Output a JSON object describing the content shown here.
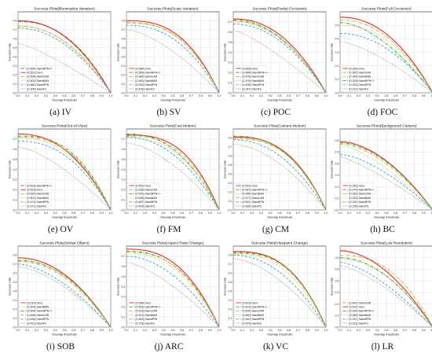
{
  "colors": {
    "Ours": "#e8262b",
    "SiamRPN++": "#2ca02c",
    "SiamCAR": "#b5b52a",
    "SiamBAN": "#d8b43a",
    "SiamRPN": "#35a3d8",
    "SiamFC": "#8c8c8c"
  },
  "styles": {
    "Ours": "solid",
    "SiamRPN++": "dashdot",
    "SiamCAR": "dashdot",
    "SiamBAN": "dotted",
    "SiamRPN": "dashed",
    "SiamFC": "dotted"
  },
  "chart_data": [
    {
      "type": "line",
      "title": "Success Plots(Illumination Variation)",
      "xlabel": "Overlap threshold",
      "ylabel": "Success rate",
      "caption": "(a) IV",
      "xlim": [
        0,
        1
      ],
      "ylim": [
        0,
        0.9
      ],
      "x_ticks": [
        "0.0",
        "0.1",
        "0.2",
        "0.3",
        "0.4",
        "0.5",
        "0.6",
        "0.7",
        "0.8",
        "0.9",
        "1.0"
      ],
      "y_ticks": [
        "0.0",
        "0.1",
        "0.2",
        "0.3",
        "0.4",
        "0.5",
        "0.6",
        "0.7",
        "0.8"
      ],
      "grid": true,
      "legend": "lower-left",
      "series": [
        {
          "name": "SiamRPN++",
          "auc": 0.554,
          "label": "[0.554] SiamRPN++",
          "y0": 0.79
        },
        {
          "name": "Ours",
          "auc": 0.551,
          "label": "[0.551] Ours",
          "y0": 0.8
        },
        {
          "name": "SiamCAR",
          "auc": 0.504,
          "label": "[0.504] SiamCAR",
          "y0": 0.74
        },
        {
          "name": "SiamBAN",
          "auc": 0.502,
          "label": "[0.502] SiamBAN",
          "y0": 0.75
        },
        {
          "name": "SiamRPN",
          "auc": 0.48,
          "label": "[0.480] SiamRPN",
          "y0": 0.72
        },
        {
          "name": "SiamFC",
          "auc": 0.305,
          "label": "[0.305] SiamFC",
          "y0": 0.55
        }
      ]
    },
    {
      "type": "line",
      "title": "Success Plots(Scale Variation)",
      "xlabel": "Overlap threshold",
      "ylabel": "Success rate",
      "caption": "(b) SV",
      "xlim": [
        0,
        1
      ],
      "ylim": [
        0,
        0.9
      ],
      "x_ticks": [
        "0.0",
        "0.1",
        "0.2",
        "0.3",
        "0.4",
        "0.5",
        "0.6",
        "0.7",
        "0.8",
        "0.9",
        "1.0"
      ],
      "y_ticks": [
        "0.0",
        "0.1",
        "0.2",
        "0.3",
        "0.4",
        "0.5",
        "0.6",
        "0.7",
        "0.8"
      ],
      "grid": true,
      "legend": "lower-left",
      "series": [
        {
          "name": "Ours",
          "auc": 0.584,
          "label": "[0.584] Ours",
          "y0": 0.8
        },
        {
          "name": "SiamRPN++",
          "auc": 0.564,
          "label": "[0.564] SiamRPN++",
          "y0": 0.78
        },
        {
          "name": "SiamCAR",
          "auc": 0.564,
          "label": "[0.564] SiamCAR",
          "y0": 0.78
        },
        {
          "name": "SiamBAN",
          "auc": 0.562,
          "label": "[0.562] SiamBAN",
          "y0": 0.77
        },
        {
          "name": "SiamRPN",
          "auc": 0.526,
          "label": "[0.526] SiamRPN",
          "y0": 0.75
        },
        {
          "name": "SiamFC",
          "auc": 0.426,
          "label": "[0.426] SiamFC",
          "y0": 0.7
        }
      ]
    },
    {
      "type": "line",
      "title": "Success Plots(Partial Occlusion)",
      "xlabel": "Overlap threshold",
      "ylabel": "Success rate",
      "caption": "(c) POC",
      "xlim": [
        0,
        1
      ],
      "ylim": [
        0,
        0.8
      ],
      "x_ticks": [
        "0.0",
        "0.1",
        "0.2",
        "0.3",
        "0.4",
        "0.5",
        "0.6",
        "0.7",
        "0.8",
        "0.9",
        "1.0"
      ],
      "y_ticks": [
        "0.0",
        "0.1",
        "0.2",
        "0.3",
        "0.4",
        "0.5",
        "0.6",
        "0.7"
      ],
      "grid": true,
      "legend": "lower-left",
      "series": [
        {
          "name": "Ours",
          "auc": 0.503,
          "label": "[0.503] Ours",
          "y0": 0.73
        },
        {
          "name": "SiamRPN++",
          "auc": 0.485,
          "label": "[0.485] SiamRPN++",
          "y0": 0.72
        },
        {
          "name": "SiamCAR",
          "auc": 0.478,
          "label": "[0.478] SiamCAR",
          "y0": 0.71
        },
        {
          "name": "SiamBAN",
          "auc": 0.476,
          "label": "[0.476] SiamBAN",
          "y0": 0.7
        },
        {
          "name": "SiamRPN",
          "auc": 0.456,
          "label": "[0.456] SiamRPN",
          "y0": 0.68
        },
        {
          "name": "SiamFC",
          "auc": 0.347,
          "label": "[0.347] SiamFC",
          "y0": 0.62
        }
      ]
    },
    {
      "type": "line",
      "title": "Success Plots(Full Occlusion)",
      "xlabel": "Overlap threshold",
      "ylabel": "Success rate",
      "caption": "(d) FOC",
      "xlim": [
        0,
        1
      ],
      "ylim": [
        0,
        0.6
      ],
      "x_ticks": [
        "0.0",
        "0.1",
        "0.2",
        "0.3",
        "0.4",
        "0.5",
        "0.6",
        "0.7",
        "0.8",
        "0.9",
        "1.0"
      ],
      "y_ticks": [
        "0.0",
        "0.1",
        "0.2",
        "0.3",
        "0.4",
        "0.5"
      ],
      "grid": true,
      "legend": "lower-left",
      "series": [
        {
          "name": "Ours",
          "auc": 0.383,
          "label": "[0.383] Ours",
          "y0": 0.56
        },
        {
          "name": "SiamCAR",
          "auc": 0.367,
          "label": "[0.367] SiamCAR",
          "y0": 0.54
        },
        {
          "name": "SiamBAN",
          "auc": 0.344,
          "label": "[0.344] SiamBAN",
          "y0": 0.5
        },
        {
          "name": "SiamRPN++",
          "auc": 0.329,
          "label": "[0.329] SiamRPN++",
          "y0": 0.52
        },
        {
          "name": "SiamRPN",
          "auc": 0.292,
          "label": "[0.292] SiamRPN",
          "y0": 0.44
        },
        {
          "name": "SiamFC",
          "auc": 0.222,
          "label": "[0.222] SiamFC",
          "y0": 0.38
        }
      ]
    },
    {
      "type": "line",
      "title": "Success Plots(Out-of-View)",
      "xlabel": "Overlap threshold",
      "ylabel": "Success rate",
      "caption": "(e) OV",
      "xlim": [
        0,
        1
      ],
      "ylim": [
        0,
        0.8
      ],
      "x_ticks": [
        "0.0",
        "0.1",
        "0.2",
        "0.3",
        "0.4",
        "0.5",
        "0.6",
        "0.7",
        "0.8",
        "0.9",
        "1.0"
      ],
      "y_ticks": [
        "0.0",
        "0.1",
        "0.2",
        "0.3",
        "0.4",
        "0.5",
        "0.6",
        "0.7"
      ],
      "grid": true,
      "legend": "lower-left",
      "series": [
        {
          "name": "SiamRPN++",
          "auc": 0.533,
          "label": "[0.533] SiamRPN++",
          "y0": 0.73
        },
        {
          "name": "Ours",
          "auc": 0.523,
          "label": "[0.523] Ours",
          "y0": 0.75
        },
        {
          "name": "SiamCAR",
          "auc": 0.52,
          "label": "[0.520] SiamCAR",
          "y0": 0.72
        },
        {
          "name": "SiamBAN",
          "auc": 0.502,
          "label": "[0.502] SiamBAN",
          "y0": 0.71
        },
        {
          "name": "SiamRPN",
          "auc": 0.474,
          "label": "[0.474] SiamRPN",
          "y0": 0.68
        },
        {
          "name": "SiamFC",
          "auc": 0.371,
          "label": "[0.371] SiamFC",
          "y0": 0.62
        }
      ]
    },
    {
      "type": "line",
      "title": "Success Plots(Fast Motion)",
      "xlabel": "Overlap threshold",
      "ylabel": "Success rate",
      "caption": "(f) FM",
      "xlim": [
        0,
        1
      ],
      "ylim": [
        0,
        0.8
      ],
      "x_ticks": [
        "0.0",
        "0.1",
        "0.2",
        "0.3",
        "0.4",
        "0.5",
        "0.6",
        "0.7",
        "0.8",
        "0.9",
        "1.0"
      ],
      "y_ticks": [
        "0.0",
        "0.1",
        "0.2",
        "0.3",
        "0.4",
        "0.5",
        "0.6",
        "0.7"
      ],
      "grid": true,
      "legend": "lower-left",
      "series": [
        {
          "name": "Ours",
          "auc": 0.552,
          "label": "[0.552] Ours",
          "y0": 0.74
        },
        {
          "name": "SiamCAR",
          "auc": 0.536,
          "label": "[0.536] SiamCAR",
          "y0": 0.73
        },
        {
          "name": "SiamRPN++",
          "auc": 0.526,
          "label": "[0.526] SiamRPN++",
          "y0": 0.75
        },
        {
          "name": "SiamBAN",
          "auc": 0.508,
          "label": "[0.508] SiamBAN",
          "y0": 0.71
        },
        {
          "name": "SiamRPN",
          "auc": 0.487,
          "label": "[0.487] SiamRPN",
          "y0": 0.72
        },
        {
          "name": "SiamFC",
          "auc": 0.409,
          "label": "[0.409] SiamFC",
          "y0": 0.66
        }
      ]
    },
    {
      "type": "line",
      "title": "Success Plots(Camera Motion)",
      "xlabel": "Overlap threshold",
      "ylabel": "Success rate",
      "caption": "(g) CM",
      "xlim": [
        0,
        1
      ],
      "ylim": [
        0,
        0.9
      ],
      "x_ticks": [
        "0.0",
        "0.1",
        "0.2",
        "0.3",
        "0.4",
        "0.5",
        "0.6",
        "0.7",
        "0.8",
        "0.9",
        "1.0"
      ],
      "y_ticks": [
        "0.0",
        "0.1",
        "0.2",
        "0.3",
        "0.4",
        "0.5",
        "0.6",
        "0.7",
        "0.8"
      ],
      "grid": true,
      "legend": "lower-left",
      "series": [
        {
          "name": "Ours",
          "auc": 0.591,
          "label": "[0.591] Ours",
          "y0": 0.81
        },
        {
          "name": "SiamRPN++",
          "auc": 0.587,
          "label": "[0.587] SiamRPN++",
          "y0": 0.82
        },
        {
          "name": "SiamBAN",
          "auc": 0.58,
          "label": "[0.580] SiamBAN",
          "y0": 0.8
        },
        {
          "name": "SiamCAR",
          "auc": 0.577,
          "label": "[0.577] SiamCAR",
          "y0": 0.79
        },
        {
          "name": "SiamRPN",
          "auc": 0.531,
          "label": "[0.531] SiamRPN",
          "y0": 0.78
        },
        {
          "name": "SiamFC",
          "auc": 0.465,
          "label": "[0.465] SiamFC",
          "y0": 0.73
        }
      ]
    },
    {
      "type": "line",
      "title": "Success Plots(Background Clutters)",
      "xlabel": "Overlap threshold",
      "ylabel": "Success rate",
      "caption": "(h) BC",
      "xlim": [
        0,
        1
      ],
      "ylim": [
        0,
        0.7
      ],
      "x_ticks": [
        "0.0",
        "0.1",
        "0.2",
        "0.3",
        "0.4",
        "0.5",
        "0.6",
        "0.7",
        "0.8",
        "0.9",
        "1.0"
      ],
      "y_ticks": [
        "0.0",
        "0.1",
        "0.2",
        "0.3",
        "0.4",
        "0.5",
        "0.6"
      ],
      "grid": true,
      "legend": "lower-left",
      "series": [
        {
          "name": "Ours",
          "auc": 0.381,
          "label": "[0.381] Ours",
          "y0": 0.59
        },
        {
          "name": "SiamRPN++",
          "auc": 0.374,
          "label": "[0.374] SiamRPN++",
          "y0": 0.58
        },
        {
          "name": "SiamCAR",
          "auc": 0.362,
          "label": "[0.362] SiamCAR",
          "y0": 0.57
        },
        {
          "name": "SiamBAN",
          "auc": 0.332,
          "label": "[0.332] SiamBAN",
          "y0": 0.56
        },
        {
          "name": "SiamRPN",
          "auc": 0.292,
          "label": "[0.292] SiamRPN",
          "y0": 0.48
        },
        {
          "name": "SiamFC",
          "auc": 0.255,
          "label": "[0.255] SiamFC",
          "y0": 0.46
        }
      ]
    },
    {
      "type": "line",
      "title": "Success Plots(Similar Object)",
      "xlabel": "Overlap threshold",
      "ylabel": "Success rate",
      "caption": "(i) SOB",
      "xlim": [
        0,
        1
      ],
      "ylim": [
        0,
        0.9
      ],
      "x_ticks": [
        "0.0",
        "0.1",
        "0.2",
        "0.3",
        "0.4",
        "0.5",
        "0.6",
        "0.7",
        "0.8",
        "0.9",
        "1.0"
      ],
      "y_ticks": [
        "0.0",
        "0.1",
        "0.2",
        "0.3",
        "0.4",
        "0.5",
        "0.6",
        "0.7",
        "0.8"
      ],
      "grid": true,
      "legend": "lower-left",
      "series": [
        {
          "name": "Ours",
          "auc": 0.519,
          "label": "[0.519] Ours",
          "y0": 0.77
        },
        {
          "name": "SiamBAN",
          "auc": 0.504,
          "label": "[0.504] SiamBAN",
          "y0": 0.75
        },
        {
          "name": "SiamRPN++",
          "auc": 0.504,
          "label": "[0.504] SiamRPN++",
          "y0": 0.74
        },
        {
          "name": "SiamCAR",
          "auc": 0.489,
          "label": "[0.489] SiamCAR",
          "y0": 0.73
        },
        {
          "name": "SiamRPN",
          "auc": 0.436,
          "label": "[0.436] SiamRPN",
          "y0": 0.7
        },
        {
          "name": "SiamFC",
          "auc": 0.41,
          "label": "[0.410] SiamFC",
          "y0": 0.67
        }
      ]
    },
    {
      "type": "line",
      "title": "Success Plots(Aspect Ratio Change)",
      "xlabel": "Overlap threshold",
      "ylabel": "Success rate",
      "caption": "(j) ARC",
      "xlim": [
        0,
        1
      ],
      "ylim": [
        0,
        0.8
      ],
      "x_ticks": [
        "0.0",
        "0.1",
        "0.2",
        "0.3",
        "0.4",
        "0.5",
        "0.6",
        "0.7",
        "0.8",
        "0.9",
        "1.0"
      ],
      "y_ticks": [
        "0.0",
        "0.1",
        "0.2",
        "0.3",
        "0.4",
        "0.5",
        "0.6",
        "0.7"
      ],
      "grid": true,
      "legend": "lower-left",
      "series": [
        {
          "name": "Ours",
          "auc": 0.554,
          "label": "[0.554] Ours",
          "y0": 0.77
        },
        {
          "name": "SiamRPN++",
          "auc": 0.533,
          "label": "[0.533] SiamRPN++",
          "y0": 0.75
        },
        {
          "name": "SiamCAR",
          "auc": 0.533,
          "label": "[0.533] SiamCAR",
          "y0": 0.74
        },
        {
          "name": "SiamBAN",
          "auc": 0.513,
          "label": "[0.513] SiamBAN",
          "y0": 0.73
        },
        {
          "name": "SiamRPN",
          "auc": 0.459,
          "label": "[0.459] SiamRPN",
          "y0": 0.7
        },
        {
          "name": "SiamFC",
          "auc": 0.378,
          "label": "[0.378] SiamFC",
          "y0": 0.64
        }
      ]
    },
    {
      "type": "line",
      "title": "Success Plots(Viewpoint Change)",
      "xlabel": "Overlap threshold",
      "ylabel": "Success rate",
      "caption": "(k) VC",
      "xlim": [
        0,
        1
      ],
      "ylim": [
        0,
        0.9
      ],
      "x_ticks": [
        "0.0",
        "0.1",
        "0.2",
        "0.3",
        "0.4",
        "0.5",
        "0.6",
        "0.7",
        "0.8",
        "0.9",
        "1.0"
      ],
      "y_ticks": [
        "0.0",
        "0.1",
        "0.2",
        "0.3",
        "0.4",
        "0.5",
        "0.6",
        "0.7",
        "0.8"
      ],
      "grid": true,
      "legend": "lower-left",
      "series": [
        {
          "name": "Ours",
          "auc": 0.619,
          "label": "[0.619] Ours",
          "y0": 0.84
        },
        {
          "name": "SiamRPN++",
          "auc": 0.615,
          "label": "[0.615] SiamRPN++",
          "y0": 0.83
        },
        {
          "name": "SiamCAR",
          "auc": 0.604,
          "label": "[0.604] SiamCAR",
          "y0": 0.82
        },
        {
          "name": "SiamBAN",
          "auc": 0.582,
          "label": "[0.582] SiamBAN",
          "y0": 0.81
        },
        {
          "name": "SiamRPN",
          "auc": 0.54,
          "label": "[0.540] SiamRPN",
          "y0": 0.8
        },
        {
          "name": "SiamFC",
          "auc": 0.475,
          "label": "[0.475] SiamFC",
          "y0": 0.76
        }
      ]
    },
    {
      "type": "line",
      "title": "Success Plots(Low Resolution)",
      "xlabel": "Overlap threshold",
      "ylabel": "Success rate",
      "caption": "(l) LR",
      "xlim": [
        0,
        1
      ],
      "ylim": [
        0,
        0.7
      ],
      "x_ticks": [
        "0.0",
        "0.1",
        "0.2",
        "0.3",
        "0.4",
        "0.5",
        "0.6",
        "0.7",
        "0.8",
        "0.9",
        "1.0"
      ],
      "y_ticks": [
        "0.0",
        "0.1",
        "0.2",
        "0.3",
        "0.4",
        "0.5",
        "0.6"
      ],
      "grid": true,
      "legend": "lower-left",
      "series": [
        {
          "name": "SiamCAR",
          "auc": 0.442,
          "label": "[0.442] SiamCAR",
          "y0": 0.62
        },
        {
          "name": "Ours",
          "auc": 0.431,
          "label": "[0.431] Ours",
          "y0": 0.66
        },
        {
          "name": "SiamRPN++",
          "auc": 0.395,
          "label": "[0.395] SiamRPN++",
          "y0": 0.6
        },
        {
          "name": "SiamBAN",
          "auc": 0.389,
          "label": "[0.389] SiamBAN",
          "y0": 0.59
        },
        {
          "name": "SiamRPN",
          "auc": 0.337,
          "label": "[0.337] SiamRPN",
          "y0": 0.56
        },
        {
          "name": "SiamFC",
          "auc": 0.311,
          "label": "[0.311] SiamFC",
          "y0": 0.53
        }
      ]
    }
  ]
}
